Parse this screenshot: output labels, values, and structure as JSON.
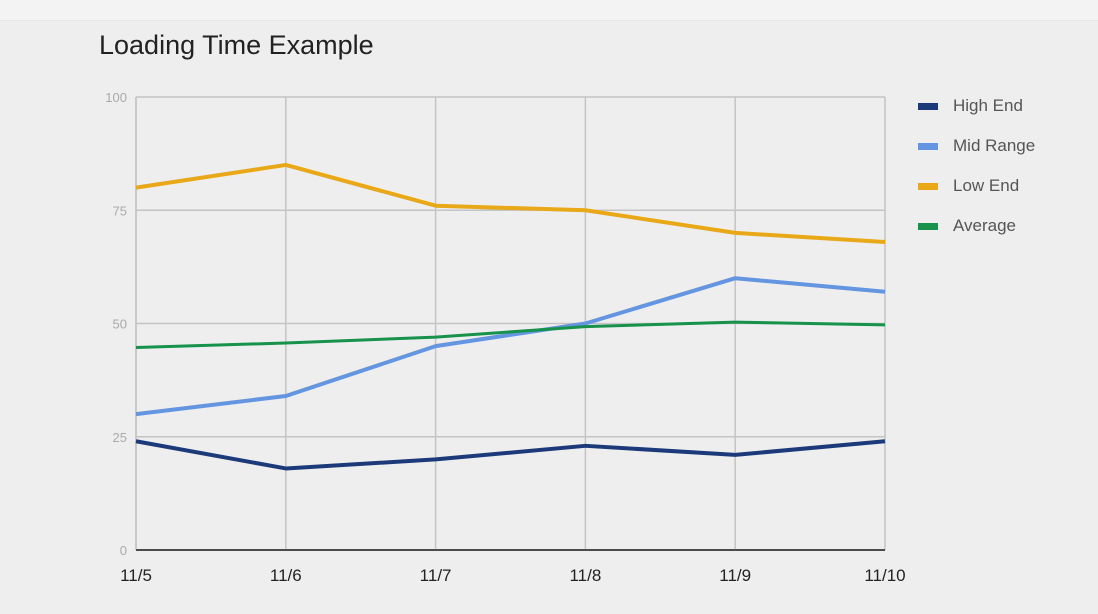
{
  "chart_data": {
    "type": "line",
    "title": "Loading Time Example",
    "xlabel": "",
    "ylabel": "",
    "categories": [
      "11/5",
      "11/6",
      "11/7",
      "11/8",
      "11/9",
      "11/10"
    ],
    "ylim": [
      0,
      100
    ],
    "yticks": [
      0,
      25,
      50,
      75,
      100
    ],
    "grid": true,
    "legend_position": "right",
    "series": [
      {
        "name": "High End",
        "color": "#1c3a7a",
        "values": [
          24,
          18,
          20,
          23,
          21,
          24
        ]
      },
      {
        "name": "Mid Range",
        "color": "#6495e0",
        "values": [
          30,
          34,
          45,
          50,
          60,
          57
        ]
      },
      {
        "name": "Low End",
        "color": "#e8a817",
        "values": [
          80,
          85,
          76,
          75,
          70,
          68
        ]
      },
      {
        "name": "Average",
        "color": "#16924a",
        "values": [
          44.7,
          45.7,
          47,
          49.3,
          50.3,
          49.7
        ]
      }
    ]
  }
}
